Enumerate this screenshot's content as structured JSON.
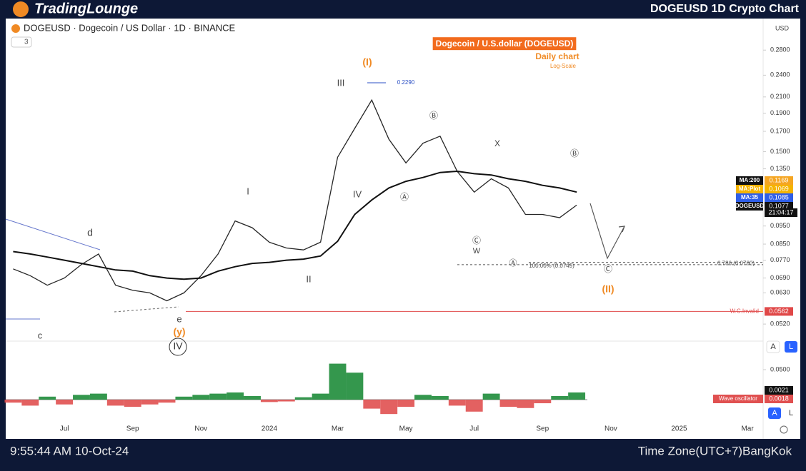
{
  "header": {
    "brand": "TradingLounge",
    "title": "DOGEUSD 1D Crypto Chart"
  },
  "toolbar": {
    "symbol": "DOGEUSD · Dogecoin / US Dollar · 1D · BINANCE",
    "indicators": "3",
    "currency": "USD",
    "scale_buttons": [
      "A",
      "L"
    ]
  },
  "footer": {
    "time": "9:55:44 AM 10-Oct-24",
    "timezone": "Time Zone(UTC+7)BangKok"
  },
  "chart_data": [
    {
      "type": "line",
      "title": "Dogecoin / U.S.dollar (DOGEUSD)",
      "subtitle": "Daily chart",
      "scale_note": "Log-Scale",
      "log_scale": true,
      "categories": [
        null,
        null,
        null,
        "Jul",
        null,
        null,
        null,
        "Sep",
        null,
        null,
        null,
        "Nov",
        null,
        null,
        null,
        "2024",
        null,
        null,
        null,
        "Mar",
        null,
        null,
        null,
        "May",
        null,
        null,
        null,
        "Jul",
        null,
        null,
        null,
        "Sep",
        null,
        null,
        null,
        "Nov",
        null,
        null,
        null,
        "2025",
        null,
        null,
        null,
        "Mar"
      ],
      "series": [
        {
          "name": "DOGEUSD",
          "color": "#262626",
          "tag_color": "#111111",
          "last_value": 0.1077,
          "values": [
            0.073,
            0.07,
            0.066,
            0.069,
            0.075,
            0.08,
            0.066,
            0.064,
            0.063,
            0.06,
            0.063,
            0.07,
            0.08,
            0.098,
            0.094,
            0.086,
            0.083,
            0.082,
            0.086,
            0.145,
            0.173,
            0.206,
            0.162,
            0.14,
            0.158,
            0.165,
            0.133,
            0.117,
            0.127,
            0.12,
            0.102,
            0.102,
            0.1,
            0.108,
            null,
            null,
            null,
            null,
            null,
            null,
            null,
            null,
            null,
            null
          ]
        },
        {
          "name": "MA:200",
          "color": "#111111",
          "tag_color": "#f5a623",
          "last_value": 0.1169,
          "values": [
            0.0812,
            0.08,
            0.0785,
            0.077,
            0.0755,
            0.074,
            0.0725,
            0.072,
            0.07,
            0.069,
            0.0685,
            0.069,
            0.072,
            0.074,
            0.0755,
            0.076,
            0.077,
            0.0775,
            0.079,
            0.0865,
            0.102,
            0.1115,
            0.12,
            0.125,
            0.128,
            0.132,
            0.133,
            0.131,
            0.13,
            0.127,
            0.125,
            0.122,
            0.12,
            0.117,
            null,
            null,
            null,
            null,
            null,
            null,
            null,
            null,
            null,
            null
          ]
        }
      ],
      "price_labels": [
        {
          "name": "MA:Plot",
          "value": 0.1069,
          "color": "#f5b400"
        },
        {
          "name": "MA:35",
          "value": 0.1085,
          "color": "#2f5fe8"
        }
      ],
      "countdown": "21:04:17",
      "ylim": [
        0.0485,
        0.334
      ],
      "yticks": [
        {
          "value": 0.28,
          "label": "0.2800"
        },
        {
          "value": 0.24,
          "label": "0.2400"
        },
        {
          "value": 0.21,
          "label": "0.2100"
        },
        {
          "value": 0.19,
          "label": "0.1900"
        },
        {
          "value": 0.17,
          "label": "0.1700"
        },
        {
          "value": 0.15,
          "label": "0.1500"
        },
        {
          "value": 0.135,
          "label": "0.1350"
        },
        {
          "value": 0.095,
          "label": "0.0950"
        },
        {
          "value": 0.085,
          "label": "0.0850"
        },
        {
          "value": 0.077,
          "label": "0.0770"
        },
        {
          "value": 0.069,
          "label": "0.0690"
        },
        {
          "value": 0.063,
          "label": "0.0630"
        },
        {
          "value": 0.052,
          "label": "0.0520"
        }
      ],
      "levels": [
        {
          "label": "W.C.Invalid",
          "value": 0.0562,
          "value_label": "0.0562",
          "color": "#e04848"
        },
        {
          "label": "100.00% (0.0749)",
          "value": 0.0749,
          "color": "#555555"
        },
        {
          "label": "0.786 (0.0760)",
          "value": 0.076,
          "color": "#555555"
        }
      ],
      "annotations": [
        "(I)",
        "0.2290",
        "III",
        "Ⓑ",
        "X",
        "Ⓑ",
        "I",
        "IV",
        "Ⓐ",
        "Ⓒ",
        "W",
        "d",
        "c",
        "e",
        "(y)",
        "IV",
        "II",
        "Ⓐ",
        "Ⓒ",
        "(II)"
      ]
    },
    {
      "type": "bar",
      "title": "Wave oscillator",
      "colors": {
        "positive": "#1e8c3a",
        "negative": "#e05050"
      },
      "values": [
        -0.005,
        -0.01,
        0.005,
        -0.008,
        0.008,
        0.01,
        -0.01,
        -0.012,
        -0.008,
        -0.005,
        0.005,
        0.008,
        0.01,
        0.012,
        0.006,
        -0.004,
        -0.003,
        0.004,
        0.01,
        0.06,
        0.045,
        -0.015,
        -0.024,
        -0.012,
        0.008,
        0.006,
        -0.01,
        -0.02,
        0.01,
        -0.012,
        -0.014,
        -0.006,
        0.006,
        0.012,
        null,
        null,
        null,
        null,
        null,
        null,
        null,
        null,
        null,
        null
      ],
      "price_labels": [
        {
          "value": 0.0021,
          "color": "#111111"
        },
        {
          "value": 0.0018,
          "color": "#e05050"
        }
      ],
      "ylim": [
        -0.0357,
        0.0833
      ],
      "yticks": [
        {
          "value": 0.05,
          "label": "0.0500"
        }
      ]
    }
  ]
}
